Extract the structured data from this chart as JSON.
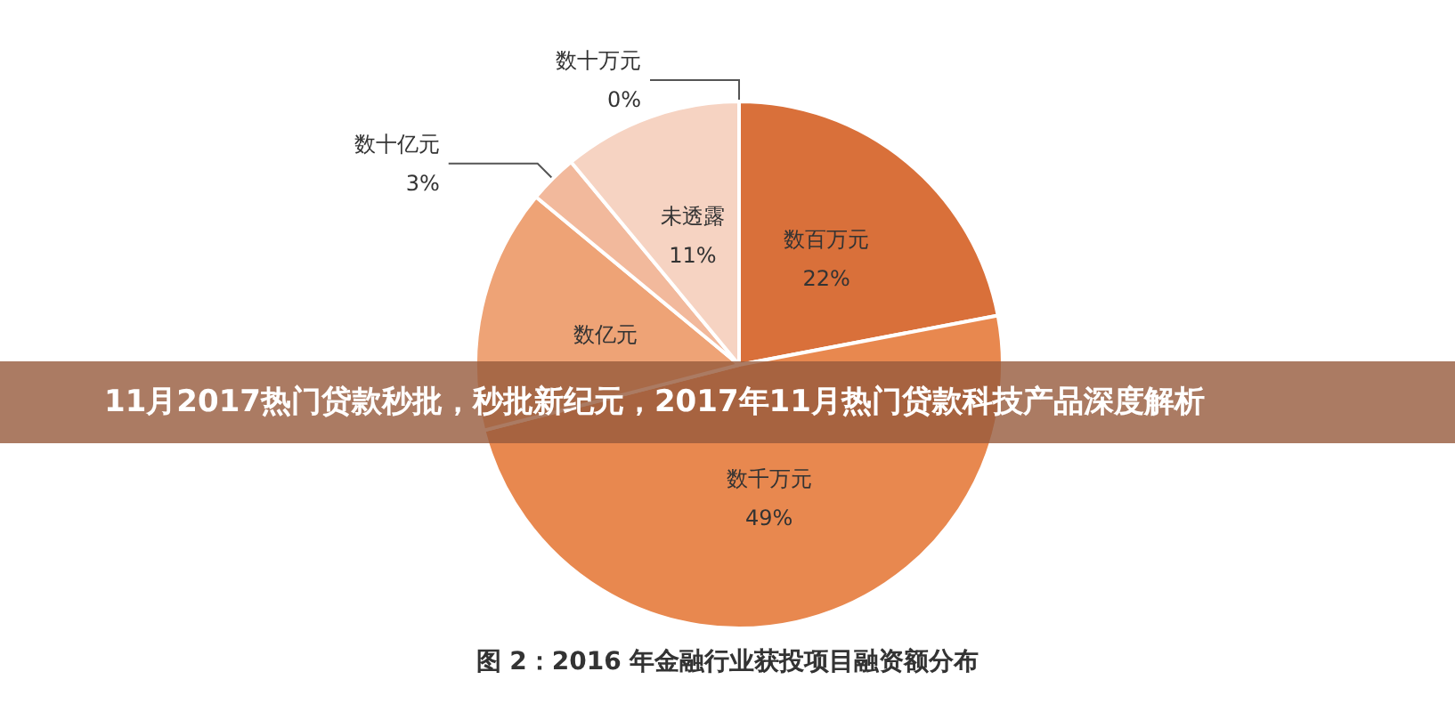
{
  "chart_data": {
    "type": "pie",
    "title": "11月2017热门贷款秒批，秒批新纪元，2017年11月热门贷款科技产品深度解析",
    "subtitle": "图 2：2016 年金融行业获投项目融资额分布",
    "categories": [
      "数十万元",
      "数百万元",
      "数千万元",
      "数亿元",
      "数十亿元",
      "未透露"
    ],
    "values": [
      0,
      22,
      49,
      15,
      3,
      11
    ],
    "value_labels": [
      "0%",
      "22%",
      "49%",
      null,
      "3%",
      "11%"
    ],
    "colors": [
      "#c8501e",
      "#d9703a",
      "#e8884f",
      "#eea376",
      "#f2b99c",
      "#f6d3c2"
    ],
    "legend": false
  }
}
